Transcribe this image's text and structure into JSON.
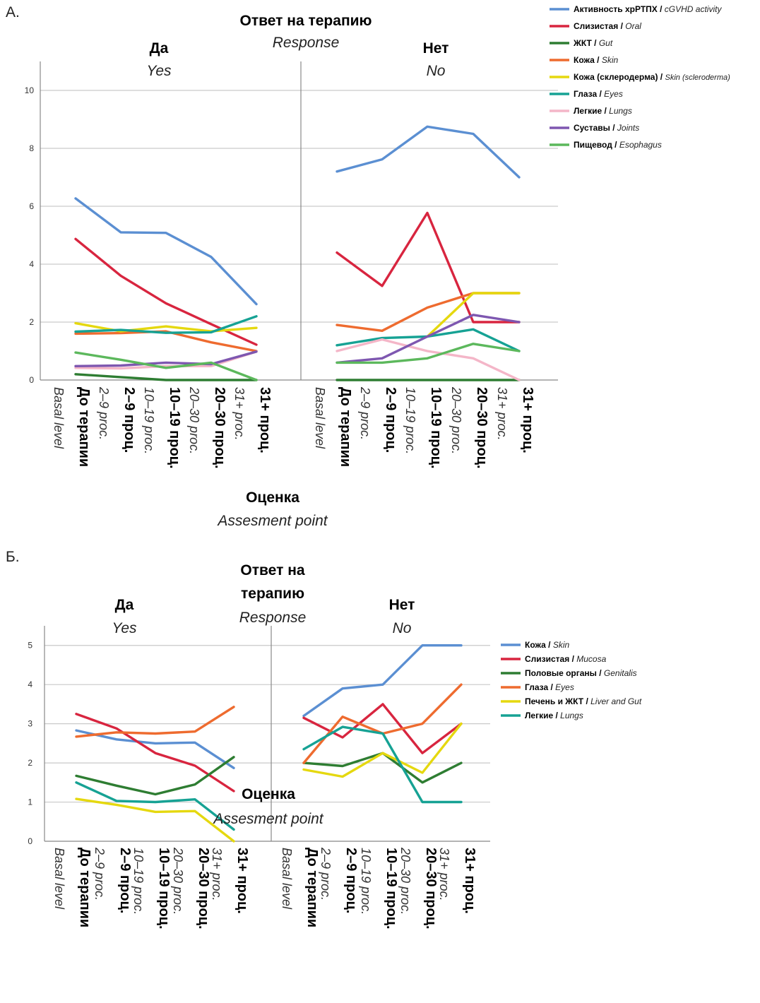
{
  "chart_data": [
    {
      "panel_label": "А.",
      "type": "line",
      "title_ru": "Ответ на терапию",
      "title_en": "Response",
      "xlabel_ru": "Оценка",
      "xlabel_en": "Assesment point",
      "ylim": [
        0,
        11
      ],
      "yticks": [
        0,
        2,
        4,
        6,
        8,
        10
      ],
      "grid": true,
      "legend_position": "top-right",
      "x_ticks": [
        {
          "ru": "До терапии",
          "en": "Basal level"
        },
        {
          "ru": "2–9 проц.",
          "en": "2–9 proc."
        },
        {
          "ru": "10–19 проц.",
          "en": "10–19 proc."
        },
        {
          "ru": "20–30 проц.",
          "en": "20–30 proc."
        },
        {
          "ru": "31+ проц.",
          "en": "31+ proc."
        }
      ],
      "facets": [
        {
          "label_ru": "Да",
          "label_en": "Yes",
          "series": [
            {
              "name_ru": "Активность хрРТПХ",
              "name_en": "cGVHD activity",
              "color": "#5b8fd2",
              "values": [
                6.27,
                5.1,
                5.08,
                4.25,
                2.62
              ]
            },
            {
              "name_ru": "Слизистая",
              "name_en": "Oral",
              "color": "#d8253f",
              "values": [
                4.87,
                3.6,
                2.65,
                1.93,
                1.22
              ]
            },
            {
              "name_ru": "ЖКТ",
              "name_en": "Gut",
              "color": "#2e7d32",
              "values": [
                0.2,
                0.1,
                0.0,
                0.0,
                0.0
              ]
            },
            {
              "name_ru": "Кожа",
              "name_en": "Skin",
              "color": "#ee6b2f",
              "values": [
                1.6,
                1.62,
                1.68,
                1.3,
                1.0
              ]
            },
            {
              "name_ru": "Кожа (склеродерма)",
              "name_en": "Skin (scleroderma)",
              "color": "#e5d80f",
              "values": [
                1.96,
                1.68,
                1.85,
                1.68,
                1.8
              ]
            },
            {
              "name_ru": "Глаза",
              "name_en": "Eyes",
              "color": "#16a294",
              "values": [
                1.67,
                1.73,
                1.63,
                1.65,
                2.2
              ]
            },
            {
              "name_ru": "Легкие",
              "name_en": "Lungs",
              "color": "#f4b6c8",
              "values": [
                0.42,
                0.4,
                0.48,
                0.48,
                0.98
              ]
            },
            {
              "name_ru": "Суставы",
              "name_en": "Joints",
              "color": "#7e57b0",
              "values": [
                0.48,
                0.5,
                0.6,
                0.55,
                0.98
              ]
            },
            {
              "name_ru": "Пищевод",
              "name_en": "Esophagus",
              "color": "#5cb85c",
              "values": [
                0.95,
                0.7,
                0.42,
                0.6,
                0.0
              ]
            }
          ]
        },
        {
          "label_ru": "Нет",
          "label_en": "No",
          "series": [
            {
              "name_ru": "Активность хрРТПХ",
              "name_en": "cGVHD activity",
              "color": "#5b8fd2",
              "values": [
                7.2,
                7.62,
                8.75,
                8.5,
                7.0
              ]
            },
            {
              "name_ru": "Слизистая",
              "name_en": "Oral",
              "color": "#d8253f",
              "values": [
                4.4,
                3.25,
                5.77,
                2.0,
                2.0
              ]
            },
            {
              "name_ru": "ЖКТ",
              "name_en": "Gut",
              "color": "#2e7d32",
              "values": [
                0.0,
                0.0,
                0.0,
                0.0,
                0.0
              ]
            },
            {
              "name_ru": "Кожа",
              "name_en": "Skin",
              "color": "#ee6b2f",
              "values": [
                1.9,
                1.7,
                2.5,
                3.0,
                3.0
              ]
            },
            {
              "name_ru": "Кожа (склеродерма)",
              "name_en": "Skin (scleroderma)",
              "color": "#e5d80f",
              "values": [
                null,
                null,
                1.5,
                3.0,
                3.0
              ]
            },
            {
              "name_ru": "Глаза",
              "name_en": "Eyes",
              "color": "#16a294",
              "values": [
                1.2,
                1.45,
                1.5,
                1.75,
                1.0
              ]
            },
            {
              "name_ru": "Легкие",
              "name_en": "Lungs",
              "color": "#f4b6c8",
              "values": [
                1.0,
                1.4,
                1.0,
                0.75,
                0.0
              ]
            },
            {
              "name_ru": "Суставы",
              "name_en": "Joints",
              "color": "#7e57b0",
              "values": [
                0.6,
                0.75,
                1.5,
                2.25,
                2.0
              ]
            },
            {
              "name_ru": "Пищевод",
              "name_en": "Esophagus",
              "color": "#5cb85c",
              "values": [
                0.6,
                0.6,
                0.75,
                1.25,
                1.0
              ]
            }
          ]
        }
      ]
    },
    {
      "panel_label": "Б.",
      "type": "line",
      "title_ru": "Ответ на терапию",
      "title_en": "Response",
      "xlabel_ru": "Оценка",
      "xlabel_en": "Assesment point",
      "ylim": [
        0,
        5.5
      ],
      "yticks": [
        0,
        1,
        2,
        3,
        4,
        5
      ],
      "grid": true,
      "legend_position": "right",
      "x_ticks": [
        {
          "ru": "До терапии",
          "en": "Basal level"
        },
        {
          "ru": "2–9 проц.",
          "en": "2–9 proc."
        },
        {
          "ru": "10–19 проц.",
          "en": "10–19 proc."
        },
        {
          "ru": "20–30 проц.",
          "en": "20–30 proc."
        },
        {
          "ru": "31+ проц.",
          "en": "31+ proc."
        }
      ],
      "facets": [
        {
          "label_ru": "Да",
          "label_en": "Yes",
          "series": [
            {
              "name_ru": "Кожа",
              "name_en": "Skin",
              "color": "#5b8fd2",
              "values": [
                2.83,
                2.6,
                2.5,
                2.52,
                1.87
              ]
            },
            {
              "name_ru": "Слизистая",
              "name_en": "Mucosa",
              "color": "#d8253f",
              "values": [
                3.25,
                2.88,
                2.25,
                1.93,
                1.28
              ]
            },
            {
              "name_ru": "Половые органы",
              "name_en": "Genitalis",
              "color": "#2e7d32",
              "values": [
                1.67,
                1.42,
                1.2,
                1.45,
                2.15
              ]
            },
            {
              "name_ru": "Глаза",
              "name_en": "Eyes",
              "color": "#ee6b2f",
              "values": [
                2.67,
                2.78,
                2.75,
                2.8,
                3.43
              ]
            },
            {
              "name_ru": "Печень и ЖКТ",
              "name_en": "Liver and Gut",
              "color": "#e5d80f",
              "values": [
                1.08,
                0.93,
                0.75,
                0.77,
                0.0
              ]
            },
            {
              "name_ru": "Легкие",
              "name_en": "Lungs",
              "color": "#16a294",
              "values": [
                1.5,
                1.03,
                1.0,
                1.07,
                0.3
              ]
            }
          ]
        },
        {
          "label_ru": "Нет",
          "label_en": "No",
          "series": [
            {
              "name_ru": "Кожа",
              "name_en": "Skin",
              "color": "#5b8fd2",
              "values": [
                3.2,
                3.9,
                4.0,
                5.0,
                5.0
              ]
            },
            {
              "name_ru": "Слизистая",
              "name_en": "Mucosa",
              "color": "#d8253f",
              "values": [
                3.15,
                2.65,
                3.5,
                2.25,
                3.0
              ]
            },
            {
              "name_ru": "Половые органы",
              "name_en": "Genitalis",
              "color": "#2e7d32",
              "values": [
                2.0,
                1.92,
                2.25,
                1.5,
                2.0
              ]
            },
            {
              "name_ru": "Глаза",
              "name_en": "Eyes",
              "color": "#ee6b2f",
              "values": [
                2.0,
                3.18,
                2.75,
                3.0,
                4.0
              ]
            },
            {
              "name_ru": "Печень и ЖКТ",
              "name_en": "Liver and Gut",
              "color": "#e5d80f",
              "values": [
                1.83,
                1.65,
                2.25,
                1.75,
                3.0
              ]
            },
            {
              "name_ru": "Легкие",
              "name_en": "Lungs",
              "color": "#16a294",
              "values": [
                2.35,
                2.92,
                2.75,
                1.0,
                1.0
              ]
            }
          ]
        }
      ]
    }
  ]
}
